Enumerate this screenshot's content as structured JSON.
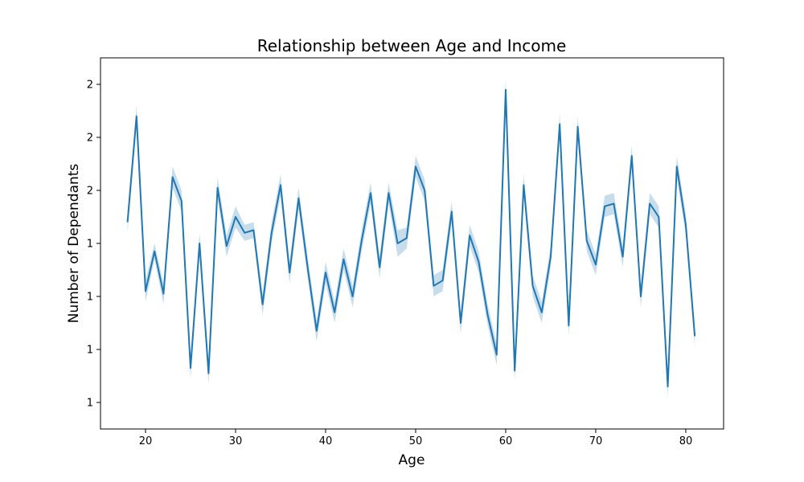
{
  "chart_data": {
    "type": "line",
    "title": "Relationship between Age and Income",
    "xlabel": "Age",
    "ylabel": "Number of Dependants",
    "xlim": [
      15,
      84.2
    ],
    "ylim": [
      0.9,
      2.3
    ],
    "x_ticks": [
      20,
      30,
      40,
      50,
      60,
      70,
      80
    ],
    "y_tick_values": [
      1.0,
      1.2,
      1.4,
      1.6,
      1.8,
      2.0,
      2.2
    ],
    "y_tick_labels": [
      "1",
      "1",
      "1",
      "1",
      "2",
      "2",
      "2"
    ],
    "line_color": "#1f77b4",
    "band_color": "#1f77b4",
    "grid": false,
    "legend": "none",
    "series": [
      {
        "x": [
          18,
          19,
          20,
          21,
          22,
          23,
          24,
          25,
          26,
          27,
          28,
          29,
          30,
          31,
          32,
          33,
          34,
          35,
          36,
          37,
          38,
          39,
          40,
          41,
          42,
          43,
          44,
          45,
          46,
          47,
          48,
          49,
          50,
          51,
          52,
          53,
          54,
          55,
          56,
          57,
          58,
          59,
          60,
          61,
          62,
          63,
          64,
          65,
          66,
          67,
          68,
          69,
          70,
          71,
          72,
          73,
          74,
          75,
          76,
          77,
          78,
          79,
          80,
          81
        ],
        "y": [
          1.68,
          2.08,
          1.42,
          1.57,
          1.41,
          1.85,
          1.76,
          1.13,
          1.6,
          1.11,
          1.81,
          1.59,
          1.7,
          1.64,
          1.65,
          1.37,
          1.64,
          1.82,
          1.49,
          1.77,
          1.51,
          1.27,
          1.49,
          1.34,
          1.54,
          1.4,
          1.61,
          1.79,
          1.51,
          1.79,
          1.6,
          1.62,
          1.89,
          1.8,
          1.44,
          1.46,
          1.72,
          1.3,
          1.63,
          1.53,
          1.33,
          1.18,
          2.18,
          1.12,
          1.82,
          1.44,
          1.34,
          1.55,
          2.05,
          1.29,
          2.04,
          1.61,
          1.52,
          1.74,
          1.75,
          1.55,
          1.93,
          1.4,
          1.75,
          1.7,
          1.06,
          1.89,
          1.67,
          1.25
        ],
        "lower": [
          1.64,
          2.04,
          1.38,
          1.54,
          1.37,
          1.81,
          1.72,
          1.09,
          1.56,
          1.07,
          1.77,
          1.55,
          1.66,
          1.61,
          1.62,
          1.33,
          1.6,
          1.78,
          1.45,
          1.73,
          1.47,
          1.23,
          1.45,
          1.3,
          1.5,
          1.36,
          1.57,
          1.75,
          1.47,
          1.75,
          1.55,
          1.58,
          1.85,
          1.76,
          1.4,
          1.42,
          1.68,
          1.26,
          1.59,
          1.49,
          1.29,
          1.14,
          2.14,
          1.08,
          1.78,
          1.4,
          1.3,
          1.51,
          2.01,
          1.25,
          2.0,
          1.57,
          1.48,
          1.7,
          1.71,
          1.51,
          1.89,
          1.36,
          1.71,
          1.66,
          1.02,
          1.85,
          1.63,
          1.21
        ],
        "upper": [
          1.72,
          2.12,
          1.46,
          1.6,
          1.45,
          1.89,
          1.8,
          1.17,
          1.64,
          1.15,
          1.85,
          1.63,
          1.74,
          1.67,
          1.68,
          1.41,
          1.68,
          1.86,
          1.53,
          1.81,
          1.55,
          1.31,
          1.53,
          1.38,
          1.58,
          1.44,
          1.65,
          1.83,
          1.55,
          1.83,
          1.65,
          1.66,
          1.93,
          1.84,
          1.48,
          1.5,
          1.76,
          1.34,
          1.67,
          1.57,
          1.37,
          1.22,
          2.22,
          1.16,
          1.86,
          1.48,
          1.38,
          1.59,
          2.09,
          1.33,
          2.08,
          1.65,
          1.56,
          1.78,
          1.79,
          1.59,
          1.97,
          1.44,
          1.79,
          1.74,
          1.1,
          1.93,
          1.71,
          1.29
        ]
      }
    ]
  }
}
